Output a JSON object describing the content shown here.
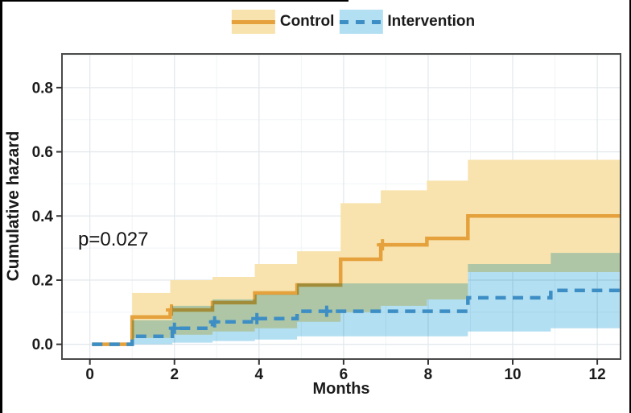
{
  "chart_data": {
    "type": "line",
    "variant": "cumulative-hazard-step-curve-with-confidence-bands",
    "title": "",
    "xlabel": "Months",
    "ylabel": "Cumulative hazard",
    "annotation": {
      "text": "p=0.027",
      "x": 0.5,
      "y": 0.31
    },
    "legend_position": "top-center",
    "grid": true,
    "x_ticks": [
      {
        "v": 0,
        "label": "0"
      },
      {
        "v": 2,
        "label": "2"
      },
      {
        "v": 4,
        "label": "4"
      },
      {
        "v": 6,
        "label": "6"
      },
      {
        "v": 8,
        "label": "8"
      },
      {
        "v": 10,
        "label": "10"
      },
      {
        "v": 12,
        "label": "12"
      }
    ],
    "x_minor": [
      1,
      3,
      5,
      7,
      9,
      11
    ],
    "y_ticks": [
      {
        "v": 0.0,
        "label": "0.0"
      },
      {
        "v": 0.2,
        "label": "0.2"
      },
      {
        "v": 0.4,
        "label": "0.4"
      },
      {
        "v": 0.6,
        "label": "0.6"
      },
      {
        "v": 0.8,
        "label": "0.8"
      }
    ],
    "y_minor": [
      0.1,
      0.3,
      0.5,
      0.7,
      0.9
    ],
    "xlim": [
      -0.66,
      12.55
    ],
    "ylim": [
      -0.046,
      0.905
    ],
    "x_axis_range_shown": [
      0,
      12.5
    ],
    "y_axis_range_shown": [
      0,
      0.8
    ],
    "panel_border_color": "#4a4a4a",
    "grid_major_color": "#e3e9ec",
    "grid_minor_color": "#f0f4f6",
    "series": [
      {
        "name": "Control",
        "style": "solid",
        "color": "#E5A13C",
        "band_color": "#F8E3AE",
        "start_x": 0.05,
        "end_x": 12.55,
        "steps": [
          [
            1.0,
            0.085
          ],
          [
            1.9,
            0.107
          ],
          [
            2.9,
            0.13
          ],
          [
            3.9,
            0.16
          ],
          [
            4.9,
            0.185
          ],
          [
            5.93,
            0.265
          ],
          [
            6.88,
            0.31
          ],
          [
            7.97,
            0.33
          ],
          [
            8.94,
            0.4
          ]
        ],
        "censor_marks": [
          [
            1.93,
            0.107
          ],
          [
            6.92,
            0.31
          ]
        ],
        "band": [
          [
            1.0,
            0.02,
            0.16
          ],
          [
            1.9,
            0.03,
            0.2
          ],
          [
            2.9,
            0.04,
            0.21
          ],
          [
            3.9,
            0.05,
            0.25
          ],
          [
            4.9,
            0.07,
            0.29
          ],
          [
            5.93,
            0.1,
            0.44
          ],
          [
            6.88,
            0.12,
            0.48
          ],
          [
            7.97,
            0.14,
            0.51
          ],
          [
            8.94,
            0.225,
            0.575
          ]
        ]
      },
      {
        "name": "Intervention",
        "style": "dashed",
        "color": "#3D8EC5",
        "band_color": "#B3DFF2",
        "start_x": 0.05,
        "end_x": 12.55,
        "steps": [
          [
            1.0,
            0.025
          ],
          [
            1.95,
            0.05
          ],
          [
            2.9,
            0.07
          ],
          [
            3.9,
            0.08
          ],
          [
            4.9,
            0.103
          ],
          [
            8.94,
            0.145
          ],
          [
            10.9,
            0.168
          ]
        ],
        "censor_marks": [
          [
            2.0,
            0.05
          ],
          [
            2.95,
            0.07
          ],
          [
            3.95,
            0.08
          ],
          [
            5.6,
            0.103
          ]
        ],
        "band": [
          [
            1.0,
            0.0,
            0.075
          ],
          [
            1.95,
            0.005,
            0.12
          ],
          [
            2.9,
            0.01,
            0.14
          ],
          [
            3.9,
            0.015,
            0.155
          ],
          [
            4.9,
            0.025,
            0.19
          ],
          [
            8.94,
            0.04,
            0.25
          ],
          [
            10.9,
            0.05,
            0.285
          ]
        ]
      }
    ]
  }
}
